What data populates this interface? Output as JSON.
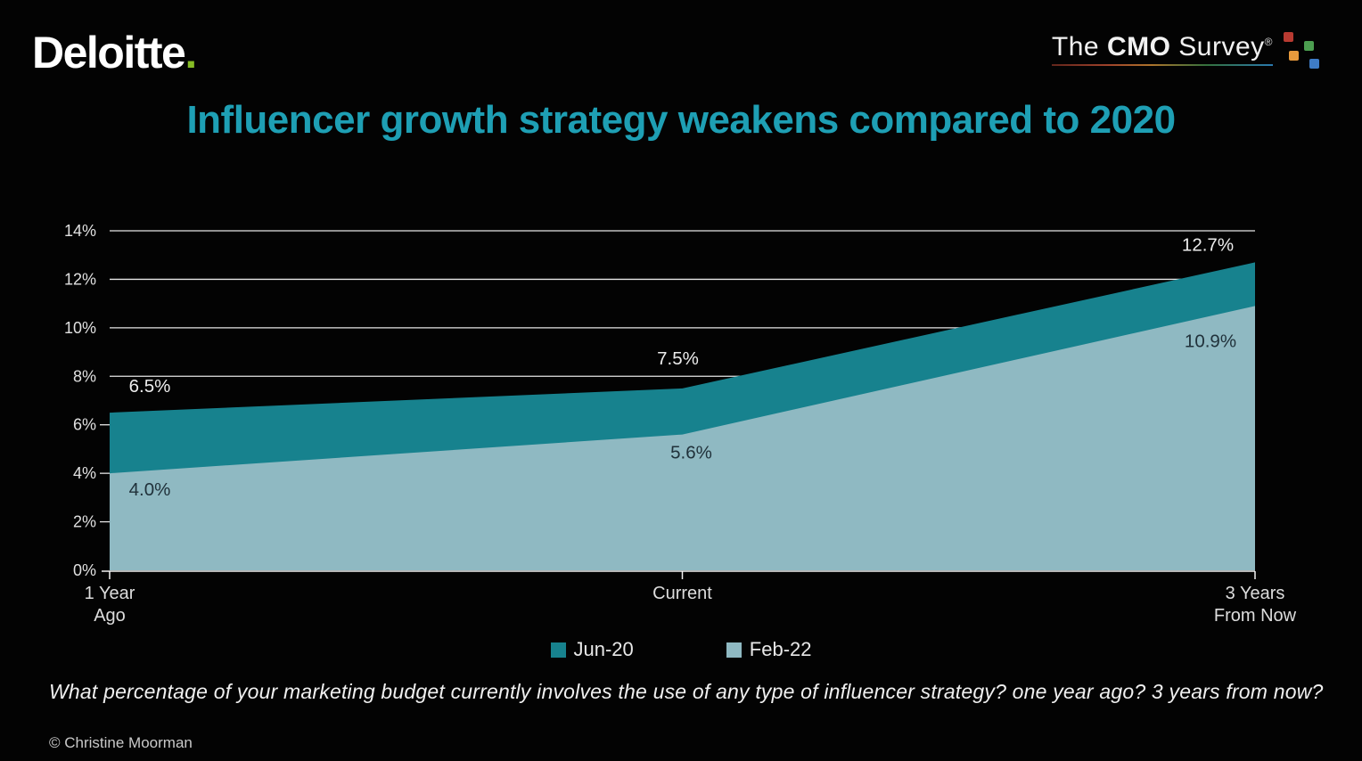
{
  "header": {
    "deloitte_text": "Deloitte",
    "deloitte_dot": ".",
    "cmo_the": "The ",
    "cmo_cmo": "CMO",
    "cmo_survey": " Survey",
    "cmo_reg": "®",
    "cmo_square_colors": [
      "#B83A31",
      "#4C9E50",
      "#E89A3C",
      "#3E7CC6"
    ]
  },
  "chart_data": {
    "type": "area",
    "title": "Influencer growth strategy weakens compared to 2020",
    "title_color": "#1E9FB4",
    "categories": [
      "1 Year\nAgo",
      "Current",
      "3 Years\nFrom Now"
    ],
    "series": [
      {
        "name": "Jun-20",
        "color": "#17828E",
        "values": [
          6.5,
          7.5,
          12.7
        ],
        "labels": [
          "6.5%",
          "7.5%",
          "12.7%"
        ],
        "label_color": "#ECECEC"
      },
      {
        "name": "Feb-22",
        "color": "#8FB9C2",
        "values": [
          4.0,
          5.6,
          10.9
        ],
        "labels": [
          "4.0%",
          "5.6%",
          "10.9%"
        ],
        "label_color": "#20313A"
      }
    ],
    "ylim": [
      0,
      14
    ],
    "ytick_step": 2,
    "ytick_labels": [
      "0%",
      "2%",
      "4%",
      "6%",
      "8%",
      "10%",
      "12%",
      "14%"
    ],
    "grid": true,
    "grid_color": "#FFFFFF",
    "axis_color": "#FFFFFF",
    "legend_position": "bottom"
  },
  "footer": {
    "question": "What percentage of your marketing budget currently involves the use of any type of influencer strategy? one year ago? 3 years from now?",
    "copyright": "© Christine Moorman"
  }
}
